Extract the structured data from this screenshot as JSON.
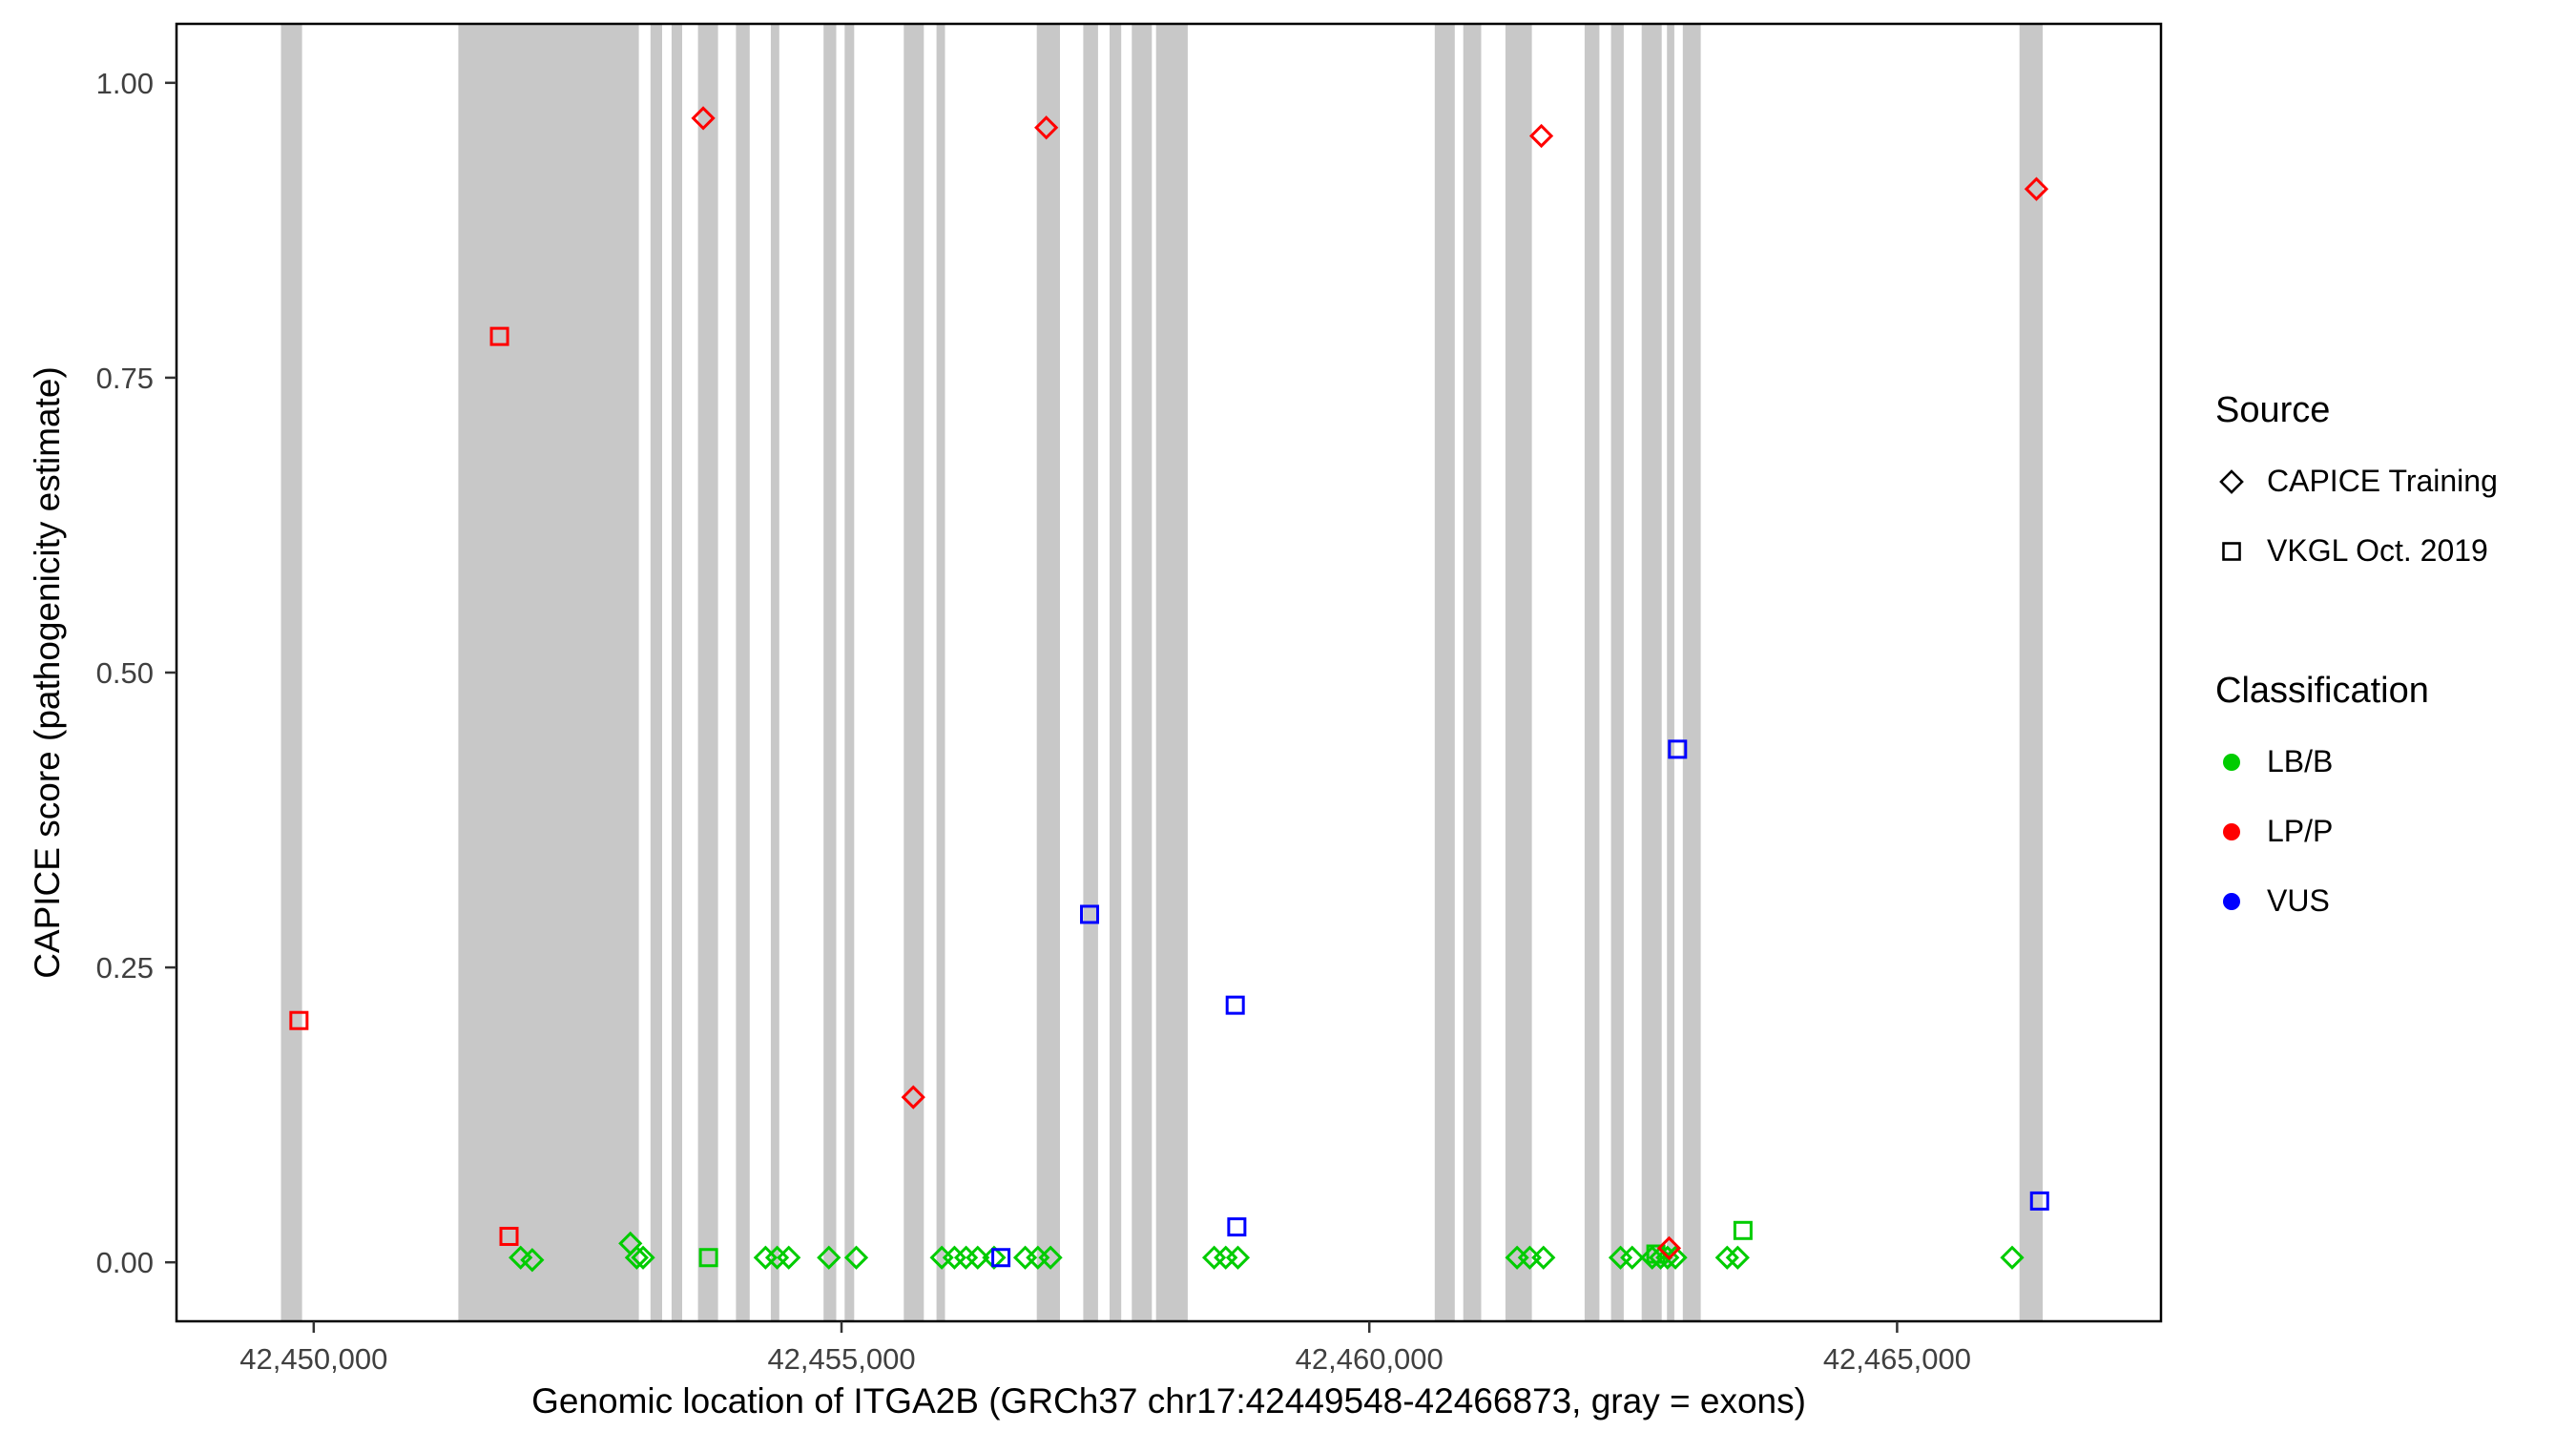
{
  "figure": {
    "x_axis_title": "Genomic location of ITGA2B (GRCh37 chr17:42449548-42466873, gray = exons)",
    "y_axis_title": "CAPICE score (pathogenicity estimate)"
  },
  "legend": {
    "source": {
      "title": "Source",
      "items": [
        {
          "label": "CAPICE Training",
          "shape": "open-diamond"
        },
        {
          "label": "VKGL Oct. 2019",
          "shape": "open-square"
        }
      ]
    },
    "classification": {
      "title": "Classification",
      "items": [
        {
          "label": "LB/B",
          "color": "#00CC00"
        },
        {
          "label": "LP/P",
          "color": "#FF0000"
        },
        {
          "label": "VUS",
          "color": "#0000FF"
        }
      ]
    }
  },
  "chart_data": {
    "type": "scatter",
    "title": "",
    "xlabel": "Genomic location of ITGA2B (GRCh37 chr17:42449548-42466873, gray = exons)",
    "ylabel": "CAPICE score (pathogenicity estimate)",
    "xlim": [
      42448700,
      42467500
    ],
    "ylim": [
      -0.05,
      1.05
    ],
    "grid": false,
    "legend_position": "right",
    "x_ticks": [
      {
        "value": 42450000,
        "label": "42,450,000"
      },
      {
        "value": 42455000,
        "label": "42,455,000"
      },
      {
        "value": 42460000,
        "label": "42,460,000"
      },
      {
        "value": 42465000,
        "label": "42,465,000"
      }
    ],
    "y_ticks": [
      {
        "value": 0.0,
        "label": "0.00"
      },
      {
        "value": 0.25,
        "label": "0.25"
      },
      {
        "value": 0.5,
        "label": "0.50"
      },
      {
        "value": 0.75,
        "label": "0.75"
      },
      {
        "value": 1.0,
        "label": "1.00"
      }
    ],
    "colors": {
      "LB/B": "#00CC00",
      "LP/P": "#FF0000",
      "VUS": "#0000FF",
      "exon": "#C8C8C8",
      "panel_border": "#000000",
      "tick_text": "#404040"
    },
    "exons": [
      [
        42449690,
        42449890
      ],
      [
        42451370,
        42453080
      ],
      [
        42453190,
        42453300
      ],
      [
        42453390,
        42453490
      ],
      [
        42453640,
        42453830
      ],
      [
        42454000,
        42454130
      ],
      [
        42454330,
        42454410
      ],
      [
        42454830,
        42454950
      ],
      [
        42455030,
        42455120
      ],
      [
        42455590,
        42455780
      ],
      [
        42455900,
        42455980
      ],
      [
        42456850,
        42457070
      ],
      [
        42457290,
        42457430
      ],
      [
        42457540,
        42457650
      ],
      [
        42457750,
        42457940
      ],
      [
        42457980,
        42458280
      ],
      [
        42460620,
        42460810
      ],
      [
        42460890,
        42461060
      ],
      [
        42461290,
        42461540
      ],
      [
        42462040,
        42462180
      ],
      [
        42462290,
        42462410
      ],
      [
        42462580,
        42462770
      ],
      [
        42462820,
        42462890
      ],
      [
        42462970,
        42463140
      ],
      [
        42466160,
        42466380
      ]
    ],
    "points": [
      {
        "pos": 42449860,
        "score": 0.205,
        "source": "VKGL Oct. 2019",
        "classification": "LP/P"
      },
      {
        "pos": 42451760,
        "score": 0.785,
        "source": "VKGL Oct. 2019",
        "classification": "LP/P"
      },
      {
        "pos": 42451850,
        "score": 0.022,
        "source": "VKGL Oct. 2019",
        "classification": "LP/P"
      },
      {
        "pos": 42453690,
        "score": 0.97,
        "source": "CAPICE Training",
        "classification": "LP/P"
      },
      {
        "pos": 42455680,
        "score": 0.14,
        "source": "CAPICE Training",
        "classification": "LP/P"
      },
      {
        "pos": 42456940,
        "score": 0.962,
        "source": "CAPICE Training",
        "classification": "LP/P"
      },
      {
        "pos": 42461630,
        "score": 0.955,
        "source": "CAPICE Training",
        "classification": "LP/P"
      },
      {
        "pos": 42462840,
        "score": 0.012,
        "source": "CAPICE Training",
        "classification": "LP/P"
      },
      {
        "pos": 42466320,
        "score": 0.91,
        "source": "CAPICE Training",
        "classification": "LP/P"
      },
      {
        "pos": 42457350,
        "score": 0.295,
        "source": "VKGL Oct. 2019",
        "classification": "VUS"
      },
      {
        "pos": 42458730,
        "score": 0.218,
        "source": "VKGL Oct. 2019",
        "classification": "VUS"
      },
      {
        "pos": 42458745,
        "score": 0.03,
        "source": "VKGL Oct. 2019",
        "classification": "VUS"
      },
      {
        "pos": 42462920,
        "score": 0.435,
        "source": "VKGL Oct. 2019",
        "classification": "VUS"
      },
      {
        "pos": 42466350,
        "score": 0.052,
        "source": "VKGL Oct. 2019",
        "classification": "VUS"
      },
      {
        "pos": 42456510,
        "score": 0.004,
        "source": "VKGL Oct. 2019",
        "classification": "VUS"
      },
      {
        "pos": 42451960,
        "score": 0.004,
        "source": "CAPICE Training",
        "classification": "LB/B"
      },
      {
        "pos": 42452070,
        "score": 0.002,
        "source": "CAPICE Training",
        "classification": "LB/B"
      },
      {
        "pos": 42453000,
        "score": 0.016,
        "source": "CAPICE Training",
        "classification": "LB/B"
      },
      {
        "pos": 42453060,
        "score": 0.004,
        "source": "CAPICE Training",
        "classification": "LB/B"
      },
      {
        "pos": 42453120,
        "score": 0.004,
        "source": "CAPICE Training",
        "classification": "LB/B"
      },
      {
        "pos": 42453740,
        "score": 0.004,
        "source": "VKGL Oct. 2019",
        "classification": "LB/B"
      },
      {
        "pos": 42454280,
        "score": 0.004,
        "source": "CAPICE Training",
        "classification": "LB/B"
      },
      {
        "pos": 42454390,
        "score": 0.004,
        "source": "CAPICE Training",
        "classification": "LB/B"
      },
      {
        "pos": 42454500,
        "score": 0.004,
        "source": "CAPICE Training",
        "classification": "LB/B"
      },
      {
        "pos": 42454880,
        "score": 0.004,
        "source": "CAPICE Training",
        "classification": "LB/B"
      },
      {
        "pos": 42455140,
        "score": 0.004,
        "source": "CAPICE Training",
        "classification": "LB/B"
      },
      {
        "pos": 42455950,
        "score": 0.004,
        "source": "CAPICE Training",
        "classification": "LB/B"
      },
      {
        "pos": 42456070,
        "score": 0.004,
        "source": "CAPICE Training",
        "classification": "LB/B"
      },
      {
        "pos": 42456180,
        "score": 0.004,
        "source": "CAPICE Training",
        "classification": "LB/B"
      },
      {
        "pos": 42456290,
        "score": 0.004,
        "source": "CAPICE Training",
        "classification": "LB/B"
      },
      {
        "pos": 42456445,
        "score": 0.004,
        "source": "CAPICE Training",
        "classification": "LB/B"
      },
      {
        "pos": 42456740,
        "score": 0.004,
        "source": "CAPICE Training",
        "classification": "LB/B"
      },
      {
        "pos": 42456860,
        "score": 0.004,
        "source": "CAPICE Training",
        "classification": "LB/B"
      },
      {
        "pos": 42456980,
        "score": 0.004,
        "source": "CAPICE Training",
        "classification": "LB/B"
      },
      {
        "pos": 42458530,
        "score": 0.004,
        "source": "CAPICE Training",
        "classification": "LB/B"
      },
      {
        "pos": 42458640,
        "score": 0.004,
        "source": "CAPICE Training",
        "classification": "LB/B"
      },
      {
        "pos": 42458755,
        "score": 0.004,
        "source": "CAPICE Training",
        "classification": "LB/B"
      },
      {
        "pos": 42461400,
        "score": 0.004,
        "source": "CAPICE Training",
        "classification": "LB/B"
      },
      {
        "pos": 42461520,
        "score": 0.004,
        "source": "CAPICE Training",
        "classification": "LB/B"
      },
      {
        "pos": 42461650,
        "score": 0.004,
        "source": "CAPICE Training",
        "classification": "LB/B"
      },
      {
        "pos": 42462380,
        "score": 0.004,
        "source": "CAPICE Training",
        "classification": "LB/B"
      },
      {
        "pos": 42462490,
        "score": 0.004,
        "source": "CAPICE Training",
        "classification": "LB/B"
      },
      {
        "pos": 42462680,
        "score": 0.004,
        "source": "CAPICE Training",
        "classification": "LB/B"
      },
      {
        "pos": 42462715,
        "score": 0.007,
        "source": "VKGL Oct. 2019",
        "classification": "LB/B"
      },
      {
        "pos": 42462760,
        "score": 0.004,
        "source": "CAPICE Training",
        "classification": "LB/B"
      },
      {
        "pos": 42462825,
        "score": 0.004,
        "source": "CAPICE Training",
        "classification": "LB/B"
      },
      {
        "pos": 42462900,
        "score": 0.004,
        "source": "CAPICE Training",
        "classification": "LB/B"
      },
      {
        "pos": 42463390,
        "score": 0.004,
        "source": "CAPICE Training",
        "classification": "LB/B"
      },
      {
        "pos": 42463490,
        "score": 0.004,
        "source": "CAPICE Training",
        "classification": "LB/B"
      },
      {
        "pos": 42463540,
        "score": 0.027,
        "source": "VKGL Oct. 2019",
        "classification": "LB/B"
      },
      {
        "pos": 42466090,
        "score": 0.004,
        "source": "CAPICE Training",
        "classification": "LB/B"
      }
    ]
  }
}
